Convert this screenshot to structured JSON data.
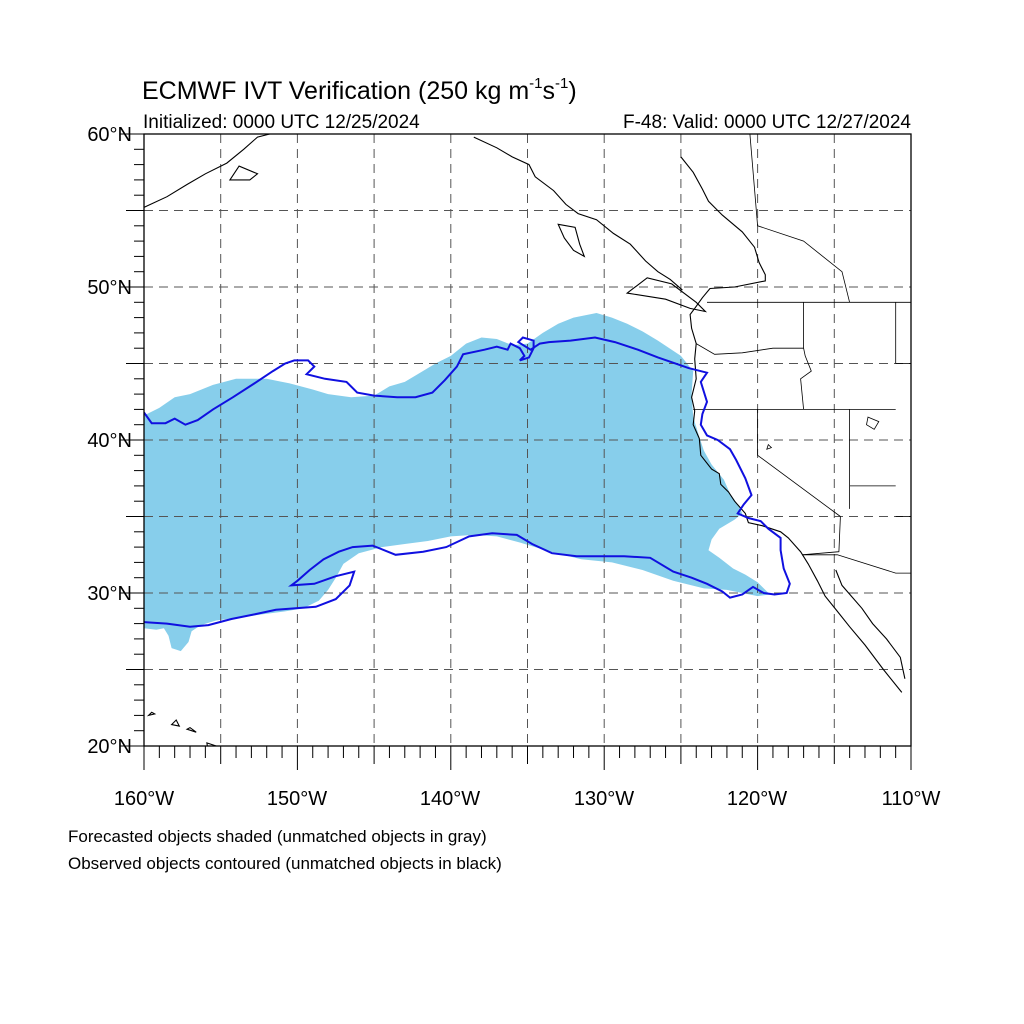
{
  "title": {
    "main": "ECMWF IVT Verification (250 kg m",
    "exp1": "-1",
    "s": "s",
    "exp2": "-1",
    "close": ")"
  },
  "subtitle": {
    "initialized": "Initialized: 0000 UTC 12/25/2024",
    "valid": "F-48: Valid: 0000 UTC 12/27/2024"
  },
  "axes": {
    "lon_range": [
      -160,
      -110
    ],
    "lat_range": [
      20,
      60
    ],
    "lon_major": [
      -160,
      -150,
      -140,
      -130,
      -120,
      -110
    ],
    "lat_major": [
      20,
      30,
      40,
      50,
      60
    ],
    "x_tick_labels": [
      "160°W",
      "150°W",
      "140°W",
      "130°W",
      "120°W",
      "110°W"
    ],
    "y_tick_labels": [
      "20°N",
      "30°N",
      "40°N",
      "50°N",
      "60°N"
    ],
    "grid": "dashed, every 5 degrees"
  },
  "notes": {
    "line1": "Forecasted objects shaded (unmatched objects in gray)",
    "line2": "Observed objects contoured (unmatched objects in black)"
  },
  "colors": {
    "forecast_fill": "#87ceeb",
    "observed_contour": "#1010e0",
    "coastline": "#000000",
    "grid": "#555555"
  },
  "map_data": {
    "forecast_object": [
      [
        -160,
        41.6
      ],
      [
        -159,
        42.1
      ],
      [
        -158,
        42.8
      ],
      [
        -157,
        43.0
      ],
      [
        -155.5,
        43.6
      ],
      [
        -154,
        44.0
      ],
      [
        -152,
        44.0
      ],
      [
        -150.5,
        43.7
      ],
      [
        -149,
        43.3
      ],
      [
        -148,
        43.0
      ],
      [
        -146.5,
        42.8
      ],
      [
        -145,
        42.9
      ],
      [
        -144,
        43.5
      ],
      [
        -143,
        43.8
      ],
      [
        -142,
        44.4
      ],
      [
        -141,
        45.0
      ],
      [
        -140,
        45.5
      ],
      [
        -139,
        46.3
      ],
      [
        -138,
        46.7
      ],
      [
        -137,
        46.6
      ],
      [
        -136,
        46.2
      ],
      [
        -135,
        46.3
      ],
      [
        -134,
        47.0
      ],
      [
        -133,
        47.6
      ],
      [
        -132,
        48.0
      ],
      [
        -130.5,
        48.3
      ],
      [
        -129.5,
        48.0
      ],
      [
        -128.5,
        47.6
      ],
      [
        -127.5,
        47.1
      ],
      [
        -126.5,
        46.5
      ],
      [
        -125,
        45.5
      ],
      [
        -124.2,
        44.5
      ],
      [
        -124.3,
        43.0
      ],
      [
        -124.2,
        41.5
      ],
      [
        -123.8,
        40.2
      ],
      [
        -123.5,
        39.3
      ],
      [
        -123.0,
        38.4
      ],
      [
        -122.2,
        37.4
      ],
      [
        -121.8,
        36.5
      ],
      [
        -121.3,
        35.8
      ],
      [
        -121.0,
        35.2
      ],
      [
        -121.5,
        34.8
      ],
      [
        -122.5,
        34.2
      ],
      [
        -123.0,
        33.5
      ],
      [
        -123.2,
        32.8
      ],
      [
        -122.5,
        32.3
      ],
      [
        -121.6,
        31.6
      ],
      [
        -120.8,
        31.2
      ],
      [
        -120.0,
        30.7
      ],
      [
        -119.5,
        30.2
      ],
      [
        -119.2,
        29.9
      ],
      [
        -120.0,
        29.8
      ],
      [
        -121.0,
        30.0
      ],
      [
        -122.0,
        30.2
      ],
      [
        -123.5,
        30.3
      ],
      [
        -125.5,
        30.8
      ],
      [
        -127.5,
        31.5
      ],
      [
        -129.5,
        32.0
      ],
      [
        -131.5,
        32.2
      ],
      [
        -133.5,
        32.7
      ],
      [
        -135.5,
        33.3
      ],
      [
        -137,
        33.7
      ],
      [
        -138.5,
        33.8
      ],
      [
        -140,
        33.7
      ],
      [
        -141.5,
        33.4
      ],
      [
        -143,
        33.2
      ],
      [
        -144.5,
        33.0
      ],
      [
        -146,
        32.6
      ],
      [
        -147,
        31.9
      ],
      [
        -147.5,
        31.0
      ],
      [
        -148,
        30.2
      ],
      [
        -148.6,
        29.5
      ],
      [
        -149.6,
        29.0
      ],
      [
        -150.8,
        28.8
      ],
      [
        -152.3,
        28.6
      ],
      [
        -153.8,
        28.4
      ],
      [
        -155.3,
        28.2
      ],
      [
        -156.3,
        27.9
      ],
      [
        -156.9,
        27.5
      ],
      [
        -157.1,
        26.8
      ],
      [
        -157.6,
        26.2
      ],
      [
        -158.2,
        26.4
      ],
      [
        -158.4,
        27.2
      ],
      [
        -158.7,
        27.7
      ],
      [
        -159.2,
        27.6
      ],
      [
        -160,
        27.7
      ]
    ],
    "observed_contour": [
      [
        -160,
        41.8
      ],
      [
        -159.5,
        41.1
      ],
      [
        -158.6,
        41.1
      ],
      [
        -158,
        41.4
      ],
      [
        -157.3,
        41.0
      ],
      [
        -156.5,
        41.3
      ],
      [
        -155.5,
        42.0
      ],
      [
        -154.2,
        42.8
      ],
      [
        -152.8,
        43.7
      ],
      [
        -151.6,
        44.5
      ],
      [
        -150.8,
        45.0
      ],
      [
        -150.2,
        45.2
      ],
      [
        -149.3,
        45.2
      ],
      [
        -148.9,
        44.8
      ],
      [
        -149.4,
        44.3
      ],
      [
        -148.2,
        44.0
      ],
      [
        -146.8,
        43.8
      ],
      [
        -146.1,
        43.1
      ],
      [
        -145,
        42.9
      ],
      [
        -143.5,
        42.8
      ],
      [
        -142.3,
        42.8
      ],
      [
        -141.2,
        43.1
      ],
      [
        -140.4,
        43.9
      ],
      [
        -139.6,
        44.8
      ],
      [
        -139.2,
        45.6
      ],
      [
        -137.8,
        45.9
      ],
      [
        -137,
        46.1
      ],
      [
        -136.3,
        45.9
      ],
      [
        -136.1,
        46.3
      ],
      [
        -135.5,
        46.0
      ],
      [
        -135.2,
        45.5
      ],
      [
        -135.5,
        45.2
      ],
      [
        -134.9,
        45.4
      ],
      [
        -134.6,
        46.0
      ],
      [
        -134.6,
        46.5
      ],
      [
        -135.3,
        46.7
      ],
      [
        -135.6,
        46.4
      ],
      [
        -134.8,
        45.9
      ],
      [
        -134.2,
        46.3
      ],
      [
        -133.6,
        46.4
      ],
      [
        -132.2,
        46.5
      ],
      [
        -130.6,
        46.7
      ],
      [
        -129.3,
        46.4
      ],
      [
        -127.8,
        45.9
      ],
      [
        -126.5,
        45.4
      ],
      [
        -124.5,
        44.7
      ],
      [
        -123.3,
        44.4
      ],
      [
        -123.7,
        43.8
      ],
      [
        -123.3,
        42.5
      ],
      [
        -123.6,
        41.7
      ],
      [
        -123.7,
        41.0
      ],
      [
        -123.3,
        40.3
      ],
      [
        -122.6,
        40.0
      ],
      [
        -121.8,
        39.4
      ],
      [
        -121.4,
        38.7
      ],
      [
        -120.8,
        37.5
      ],
      [
        -120.4,
        36.4
      ],
      [
        -120.9,
        35.8
      ],
      [
        -121.3,
        35.2
      ],
      [
        -120.6,
        34.9
      ],
      [
        -119.8,
        34.7
      ],
      [
        -119.3,
        34.2
      ],
      [
        -118.5,
        33.6
      ],
      [
        -118.5,
        32.8
      ],
      [
        -118.3,
        31.6
      ],
      [
        -117.9,
        30.6
      ],
      [
        -118.1,
        30.0
      ],
      [
        -118.9,
        29.9
      ],
      [
        -119.6,
        30.0
      ],
      [
        -120.3,
        30.4
      ],
      [
        -121,
        29.9
      ],
      [
        -121.8,
        29.7
      ],
      [
        -122.3,
        30.1
      ],
      [
        -123.3,
        30.6
      ],
      [
        -124.3,
        31.0
      ],
      [
        -125.5,
        31.4
      ],
      [
        -127,
        32.3
      ],
      [
        -128.7,
        32.4
      ],
      [
        -130.3,
        32.4
      ],
      [
        -131.8,
        32.4
      ],
      [
        -133.4,
        32.6
      ],
      [
        -134.7,
        33.2
      ],
      [
        -135.7,
        33.8
      ],
      [
        -137.3,
        33.9
      ],
      [
        -138.8,
        33.7
      ],
      [
        -140.3,
        33.0
      ],
      [
        -141.8,
        32.7
      ],
      [
        -143.6,
        32.5
      ],
      [
        -145.1,
        33.1
      ],
      [
        -146.4,
        33.0
      ],
      [
        -147.3,
        32.7
      ],
      [
        -148.3,
        32.2
      ],
      [
        -149.2,
        31.5
      ],
      [
        -150,
        30.8
      ],
      [
        -150.4,
        30.5
      ],
      [
        -148.9,
        30.6
      ],
      [
        -147.5,
        31.1
      ],
      [
        -146.3,
        31.4
      ],
      [
        -146.6,
        30.5
      ],
      [
        -147.5,
        29.6
      ],
      [
        -148.8,
        29.1
      ],
      [
        -150.1,
        29.0
      ],
      [
        -151.4,
        28.9
      ],
      [
        -152.8,
        28.6
      ],
      [
        -154.3,
        28.3
      ],
      [
        -155.8,
        27.9
      ],
      [
        -157,
        27.8
      ],
      [
        -158.5,
        28.0
      ],
      [
        -160,
        28.1
      ]
    ],
    "coastline": [
      [
        -125,
        58.5
      ],
      [
        -124.2,
        57.5
      ],
      [
        -123.6,
        56.4
      ],
      [
        -123.2,
        55.6
      ],
      [
        -122.3,
        54.7
      ],
      [
        -121.0,
        53.6
      ],
      [
        -120.2,
        52.6
      ],
      [
        -119.9,
        51.6
      ],
      [
        -119.5,
        50.8
      ],
      [
        -119.5,
        50.4
      ],
      [
        -121.5,
        50.0
      ],
      [
        -123.1,
        49.9
      ],
      [
        -123.6,
        49.3
      ],
      [
        -124.1,
        48.6
      ],
      [
        -124.4,
        48.2
      ],
      [
        -124.3,
        47.3
      ],
      [
        -124.0,
        46.3
      ],
      [
        -124.1,
        45.3
      ],
      [
        -124.0,
        44.0
      ],
      [
        -124.3,
        42.8
      ],
      [
        -124.1,
        41.9
      ],
      [
        -124.2,
        41.0
      ],
      [
        -123.8,
        40.1
      ],
      [
        -123.7,
        39.0
      ],
      [
        -123.0,
        38.1
      ],
      [
        -122.5,
        37.8
      ],
      [
        -122.4,
        37.1
      ],
      [
        -121.9,
        36.6
      ],
      [
        -121.5,
        36.0
      ],
      [
        -120.8,
        35.2
      ],
      [
        -120.6,
        34.6
      ],
      [
        -119.7,
        34.4
      ],
      [
        -118.5,
        34.0
      ],
      [
        -118.0,
        33.6
      ],
      [
        -117.2,
        32.7
      ],
      [
        -116.7,
        31.9
      ],
      [
        -116.1,
        30.8
      ],
      [
        -115.6,
        29.8
      ],
      [
        -114.8,
        28.8
      ],
      [
        -114.0,
        27.8
      ],
      [
        -113.0,
        26.6
      ],
      [
        -111.8,
        25.0
      ],
      [
        -110.6,
        23.5
      ]
    ],
    "coastline_gulf": [
      [
        -114.9,
        31.5
      ],
      [
        -114.5,
        30.5
      ],
      [
        -113.2,
        29.0
      ],
      [
        -112.5,
        28.0
      ],
      [
        -111.6,
        27.0
      ],
      [
        -110.7,
        25.8
      ],
      [
        -110.4,
        24.4
      ]
    ],
    "coastline_north": [
      [
        -138.5,
        59.8
      ],
      [
        -137.0,
        59.1
      ],
      [
        -136.0,
        58.5
      ],
      [
        -134.9,
        58.0
      ],
      [
        -134.5,
        57.2
      ],
      [
        -133.3,
        56.3
      ],
      [
        -132.5,
        55.4
      ],
      [
        -131.7,
        54.8
      ],
      [
        -130.5,
        54.4
      ],
      [
        -129.4,
        53.5
      ],
      [
        -128.3,
        52.8
      ],
      [
        -127.3,
        51.7
      ],
      [
        -126.5,
        51.0
      ],
      [
        -125.7,
        50.5
      ],
      [
        -124.9,
        49.8
      ]
    ],
    "islands": [
      [
        [
          -128.5,
          49.6
        ],
        [
          -127.2,
          50.6
        ],
        [
          -125.6,
          50.2
        ],
        [
          -124.0,
          49.0
        ],
        [
          -123.4,
          48.4
        ],
        [
          -124.4,
          48.6
        ],
        [
          -126.0,
          49.2
        ],
        [
          -128.5,
          49.6
        ]
      ],
      [
        [
          -133.0,
          54.1
        ],
        [
          -131.9,
          53.9
        ],
        [
          -131.6,
          52.8
        ],
        [
          -131.3,
          52.0
        ],
        [
          -132.0,
          52.4
        ],
        [
          -132.6,
          53.2
        ],
        [
          -133.0,
          54.1
        ]
      ],
      [
        [
          -155.8,
          19.5
        ],
        [
          -155.0,
          19.9
        ],
        [
          -155.9,
          20.2
        ],
        [
          -155.8,
          19.5
        ]
      ],
      [
        [
          -157.2,
          21.1
        ],
        [
          -156.6,
          20.9
        ],
        [
          -157.0,
          21.2
        ],
        [
          -157.2,
          21.1
        ]
      ],
      [
        [
          -158.2,
          21.4
        ],
        [
          -157.7,
          21.3
        ],
        [
          -157.9,
          21.7
        ],
        [
          -158.2,
          21.4
        ]
      ],
      [
        [
          -159.7,
          22.0
        ],
        [
          -159.3,
          22.1
        ],
        [
          -159.5,
          22.2
        ],
        [
          -159.7,
          22.0
        ]
      ],
      [
        [
          -152.6,
          57.4
        ],
        [
          -153.8,
          57.9
        ],
        [
          -154.4,
          57.0
        ],
        [
          -153.1,
          57.0
        ],
        [
          -152.6,
          57.4
        ]
      ]
    ],
    "coastline_alaska": [
      [
        -160,
        55.2
      ],
      [
        -158.5,
        55.9
      ],
      [
        -157.2,
        56.7
      ],
      [
        -156.0,
        57.4
      ],
      [
        -154.6,
        58.1
      ],
      [
        -153.5,
        59.0
      ],
      [
        -152.6,
        59.8
      ],
      [
        -151.8,
        60.0
      ]
    ],
    "borders": [
      [
        [
          -123.3,
          49.0
        ],
        [
          -110,
          49.0
        ]
      ],
      [
        [
          -124.2,
          42.0
        ],
        [
          -120.0,
          42.0
        ],
        [
          -111.0,
          42.0
        ]
      ],
      [
        [
          -120.0,
          42.0
        ],
        [
          -120.0,
          39.0
        ],
        [
          -114.6,
          35.0
        ]
      ],
      [
        [
          -114.6,
          35.0
        ],
        [
          -114.7,
          32.7
        ],
        [
          -117.1,
          32.5
        ]
      ],
      [
        [
          -117.1,
          32.5
        ],
        [
          -114.8,
          32.5
        ],
        [
          -111.0,
          31.3
        ],
        [
          -110,
          31.3
        ]
      ],
      [
        [
          -117.0,
          49.0
        ],
        [
          -117.0,
          46.0
        ],
        [
          -116.9,
          45.5
        ],
        [
          -116.5,
          44.5
        ],
        [
          -117.2,
          44.0
        ],
        [
          -117.0,
          42.0
        ]
      ],
      [
        [
          -111.0,
          45.0
        ],
        [
          -111.0,
          49.0
        ]
      ],
      [
        [
          -124.0,
          46.3
        ],
        [
          -122.8,
          45.6
        ],
        [
          -121.0,
          45.7
        ],
        [
          -119.0,
          46.0
        ],
        [
          -117.0,
          46.0
        ]
      ],
      [
        [
          -114.0,
          42.0
        ],
        [
          -114.0,
          35.5
        ]
      ],
      [
        [
          -114.0,
          37.0
        ],
        [
          -111.0,
          37.0
        ]
      ],
      [
        [
          -111.0,
          35.0
        ],
        [
          -110,
          35.0
        ]
      ],
      [
        [
          -110,
          45.0
        ],
        [
          -111.0,
          45.0
        ]
      ],
      [
        [
          -120.5,
          60.0
        ],
        [
          -120.0,
          54.0
        ],
        [
          -117.0,
          53.0
        ],
        [
          -114.5,
          51.0
        ],
        [
          -114.0,
          49.0
        ]
      ]
    ],
    "lakes": [
      [
        [
          -112.8,
          41.5
        ],
        [
          -112.1,
          41.2
        ],
        [
          -112.4,
          40.7
        ],
        [
          -112.9,
          41.0
        ],
        [
          -112.8,
          41.5
        ]
      ],
      [
        [
          -119.3,
          39.7
        ],
        [
          -119.1,
          39.5
        ],
        [
          -119.4,
          39.4
        ],
        [
          -119.3,
          39.7
        ]
      ]
    ]
  }
}
